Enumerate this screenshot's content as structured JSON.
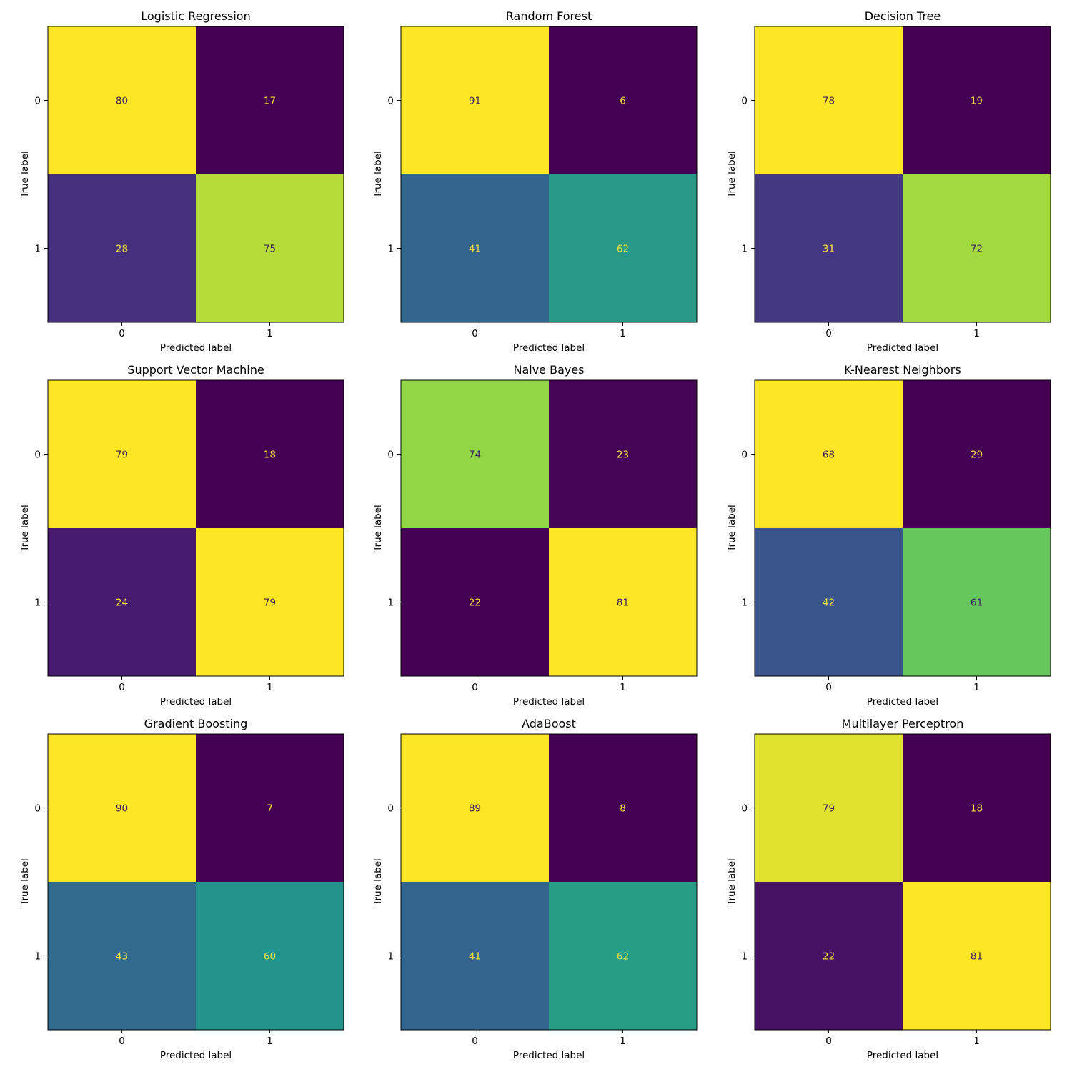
{
  "chart_data": [
    {
      "type": "heatmap",
      "title": "Logistic Regression",
      "xlabel": "Predicted label",
      "ylabel": "True label",
      "x_categories": [
        "0",
        "1"
      ],
      "y_categories": [
        "0",
        "1"
      ],
      "values": [
        [
          80,
          17
        ],
        [
          28,
          75
        ]
      ],
      "colormap": "viridis",
      "grid": false
    },
    {
      "type": "heatmap",
      "title": "Random Forest",
      "xlabel": "Predicted label",
      "ylabel": "True label",
      "x_categories": [
        "0",
        "1"
      ],
      "y_categories": [
        "0",
        "1"
      ],
      "values": [
        [
          91,
          6
        ],
        [
          41,
          62
        ]
      ],
      "colormap": "viridis",
      "grid": false
    },
    {
      "type": "heatmap",
      "title": "Decision Tree",
      "xlabel": "Predicted label",
      "ylabel": "True label",
      "x_categories": [
        "0",
        "1"
      ],
      "y_categories": [
        "0",
        "1"
      ],
      "values": [
        [
          78,
          19
        ],
        [
          31,
          72
        ]
      ],
      "colormap": "viridis",
      "grid": false
    },
    {
      "type": "heatmap",
      "title": "Support Vector Machine",
      "xlabel": "Predicted label",
      "ylabel": "True label",
      "x_categories": [
        "0",
        "1"
      ],
      "y_categories": [
        "0",
        "1"
      ],
      "values": [
        [
          79,
          18
        ],
        [
          24,
          79
        ]
      ],
      "colormap": "viridis",
      "grid": false
    },
    {
      "type": "heatmap",
      "title": "Naive Bayes",
      "xlabel": "Predicted label",
      "ylabel": "True label",
      "x_categories": [
        "0",
        "1"
      ],
      "y_categories": [
        "0",
        "1"
      ],
      "values": [
        [
          74,
          23
        ],
        [
          22,
          81
        ]
      ],
      "colormap": "viridis",
      "grid": false
    },
    {
      "type": "heatmap",
      "title": "K-Nearest Neighbors",
      "xlabel": "Predicted label",
      "ylabel": "True label",
      "x_categories": [
        "0",
        "1"
      ],
      "y_categories": [
        "0",
        "1"
      ],
      "values": [
        [
          68,
          29
        ],
        [
          42,
          61
        ]
      ],
      "colormap": "viridis",
      "grid": false
    },
    {
      "type": "heatmap",
      "title": "Gradient Boosting",
      "xlabel": "Predicted label",
      "ylabel": "True label",
      "x_categories": [
        "0",
        "1"
      ],
      "y_categories": [
        "0",
        "1"
      ],
      "values": [
        [
          90,
          7
        ],
        [
          43,
          60
        ]
      ],
      "colormap": "viridis",
      "grid": false
    },
    {
      "type": "heatmap",
      "title": "AdaBoost",
      "xlabel": "Predicted label",
      "ylabel": "True label",
      "x_categories": [
        "0",
        "1"
      ],
      "y_categories": [
        "0",
        "1"
      ],
      "values": [
        [
          89,
          8
        ],
        [
          41,
          62
        ]
      ],
      "colormap": "viridis",
      "grid": false
    },
    {
      "type": "heatmap",
      "title": "Multilayer Perceptron",
      "xlabel": "Predicted label",
      "ylabel": "True label",
      "x_categories": [
        "0",
        "1"
      ],
      "y_categories": [
        "0",
        "1"
      ],
      "values": [
        [
          79,
          18
        ],
        [
          22,
          81
        ]
      ],
      "colormap": "viridis",
      "grid": false
    }
  ]
}
